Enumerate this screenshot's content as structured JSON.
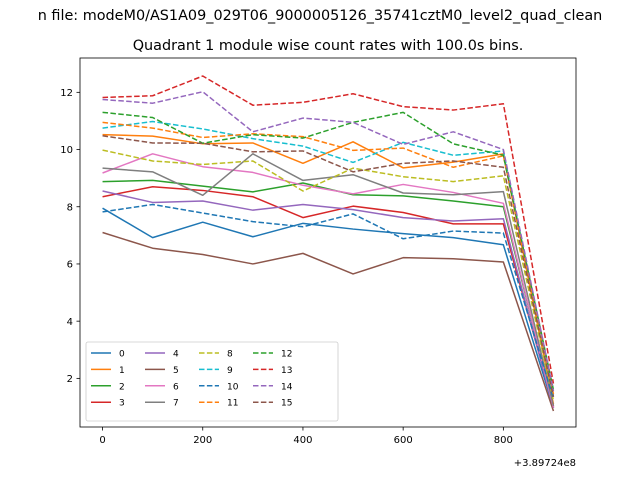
{
  "page": {
    "suptitle": "n file: modeM0/AS1A09_029T06_9000005126_35741cztM0_level2_quad_clean",
    "title": "Quadrant 1 module wise count rates with 100.0s bins."
  },
  "chart_data": {
    "type": "line",
    "title": "Quadrant 1 module wise count rates with 100.0s bins.",
    "xlabel": "",
    "ylabel": "",
    "x_offset_label": "+3.89724e8",
    "xlim": [
      -45,
      945
    ],
    "ylim": [
      0.3,
      13.2
    ],
    "xticks": [
      0,
      200,
      400,
      600,
      800
    ],
    "yticks": [
      2,
      4,
      6,
      8,
      10,
      12
    ],
    "x": [
      0,
      100,
      200,
      300,
      400,
      500,
      600,
      700,
      800,
      900
    ],
    "legend": {
      "location": "lower-left",
      "columns": 4
    },
    "series": [
      {
        "name": "0",
        "color": "#1f77b4",
        "dashed": false,
        "values": [
          7.95,
          6.92,
          7.46,
          6.95,
          7.42,
          7.22,
          7.06,
          6.92,
          6.67,
          0.98
        ]
      },
      {
        "name": "1",
        "color": "#ff7f0e",
        "dashed": false,
        "values": [
          10.52,
          10.47,
          10.2,
          10.23,
          9.52,
          10.27,
          9.36,
          9.56,
          9.85,
          1.1
        ]
      },
      {
        "name": "2",
        "color": "#2ca02c",
        "dashed": false,
        "values": [
          8.88,
          8.92,
          8.72,
          8.52,
          8.83,
          8.42,
          8.38,
          8.2,
          8.0,
          1.02
        ]
      },
      {
        "name": "3",
        "color": "#d62728",
        "dashed": false,
        "values": [
          8.35,
          8.7,
          8.57,
          8.35,
          7.62,
          8.02,
          7.8,
          7.4,
          7.4,
          1.02
        ]
      },
      {
        "name": "4",
        "color": "#9467bd",
        "dashed": false,
        "values": [
          8.55,
          8.15,
          8.2,
          7.88,
          8.08,
          7.9,
          7.62,
          7.5,
          7.58,
          0.96
        ]
      },
      {
        "name": "5",
        "color": "#8c564b",
        "dashed": false,
        "values": [
          7.1,
          6.55,
          6.33,
          6.0,
          6.37,
          5.65,
          6.22,
          6.18,
          6.07,
          0.86
        ]
      },
      {
        "name": "6",
        "color": "#e377c2",
        "dashed": false,
        "values": [
          9.18,
          9.85,
          9.4,
          9.2,
          8.75,
          8.45,
          8.78,
          8.5,
          8.12,
          0.98
        ]
      },
      {
        "name": "7",
        "color": "#7f7f7f",
        "dashed": false,
        "values": [
          9.35,
          9.22,
          8.4,
          9.85,
          8.92,
          9.12,
          8.48,
          8.42,
          8.53,
          1.04
        ]
      },
      {
        "name": "8",
        "color": "#bcbd22",
        "dashed": true,
        "values": [
          9.98,
          9.6,
          9.48,
          9.6,
          8.55,
          9.35,
          9.05,
          8.88,
          9.08,
          1.22
        ]
      },
      {
        "name": "9",
        "color": "#17becf",
        "dashed": true,
        "values": [
          10.75,
          10.98,
          10.72,
          10.38,
          10.12,
          9.55,
          10.25,
          9.8,
          9.95,
          1.38
        ]
      },
      {
        "name": "10",
        "color": "#1f77b4",
        "dashed": true,
        "values": [
          7.82,
          8.08,
          7.78,
          7.48,
          7.3,
          7.75,
          6.88,
          7.15,
          7.08,
          1.28
        ]
      },
      {
        "name": "11",
        "color": "#ff7f0e",
        "dashed": true,
        "values": [
          10.95,
          10.75,
          10.42,
          10.55,
          10.45,
          9.97,
          10.05,
          9.38,
          9.78,
          1.45
        ]
      },
      {
        "name": "12",
        "color": "#2ca02c",
        "dashed": true,
        "values": [
          11.3,
          11.12,
          10.22,
          10.52,
          10.4,
          10.95,
          11.3,
          10.2,
          9.8,
          1.6
        ]
      },
      {
        "name": "13",
        "color": "#d62728",
        "dashed": true,
        "values": [
          11.82,
          11.88,
          12.57,
          11.55,
          11.65,
          11.95,
          11.5,
          11.38,
          11.6,
          1.82
        ]
      },
      {
        "name": "14",
        "color": "#9467bd",
        "dashed": true,
        "values": [
          11.75,
          11.62,
          12.02,
          10.62,
          11.1,
          10.95,
          10.18,
          10.62,
          10.0,
          1.55
        ]
      },
      {
        "name": "15",
        "color": "#8c564b",
        "dashed": true,
        "values": [
          10.48,
          10.23,
          10.22,
          9.92,
          9.95,
          9.22,
          9.52,
          9.6,
          9.38,
          1.35
        ]
      }
    ]
  }
}
